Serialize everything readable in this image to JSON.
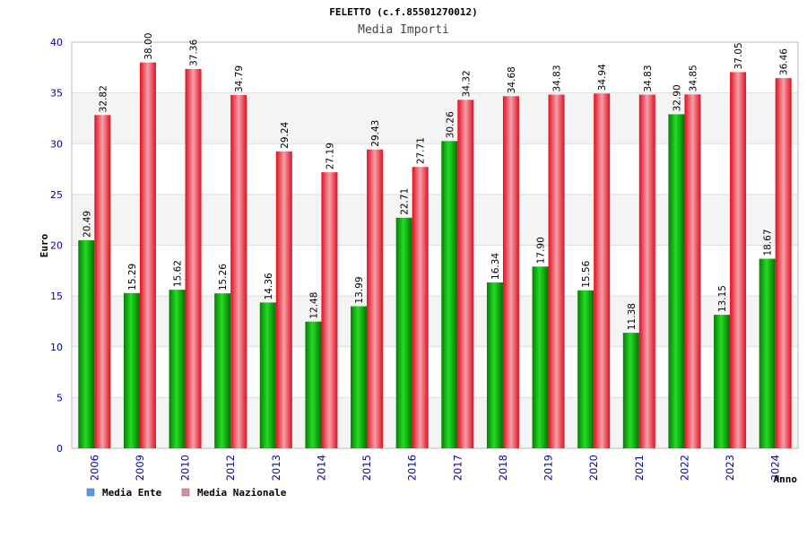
{
  "chart_data": {
    "type": "bar",
    "title": "FELETTO (c.f.85501270012)",
    "subtitle": "Media Importi",
    "xlabel": "Anno",
    "ylabel": "Euro",
    "ylim": [
      0,
      40
    ],
    "yticks": [
      "0",
      "5",
      "10",
      "15",
      "20",
      "25",
      "30",
      "35",
      "40"
    ],
    "grid": true,
    "legend_position": "bottom-left",
    "categories": [
      "2006",
      "2009",
      "2010",
      "2012",
      "2013",
      "2014",
      "2015",
      "2016",
      "2017",
      "2018",
      "2019",
      "2020",
      "2021",
      "2022",
      "2023",
      "2024"
    ],
    "series": [
      {
        "name": "Media Ente",
        "legend_color": "#5599ee",
        "bar_color": "#11aa11",
        "values": [
          20.49,
          15.29,
          15.62,
          15.26,
          14.36,
          12.48,
          13.99,
          22.71,
          30.26,
          16.34,
          17.9,
          15.56,
          11.38,
          32.9,
          13.15,
          18.67
        ],
        "labels": [
          "20.49",
          "15.29",
          "15.62",
          "15.26",
          "14.36",
          "12.48",
          "13.99",
          "22.71",
          "30.26",
          "16.34",
          "17.90",
          "15.56",
          "11.38",
          "32.90",
          "13.15",
          "18.67"
        ]
      },
      {
        "name": "Media Nazionale",
        "legend_color": "#dd88aa",
        "bar_color": "#ee1122",
        "values": [
          32.82,
          38.0,
          37.36,
          34.79,
          29.24,
          27.19,
          29.43,
          27.71,
          34.32,
          34.68,
          34.83,
          34.94,
          34.83,
          34.85,
          37.05,
          36.46
        ],
        "labels": [
          "32.82",
          "38.00",
          "37.36",
          "34.79",
          "29.24",
          "27.19",
          "29.43",
          "27.71",
          "34.32",
          "34.68",
          "34.83",
          "34.94",
          "34.83",
          "34.85",
          "37.05",
          "36.46"
        ]
      }
    ]
  }
}
